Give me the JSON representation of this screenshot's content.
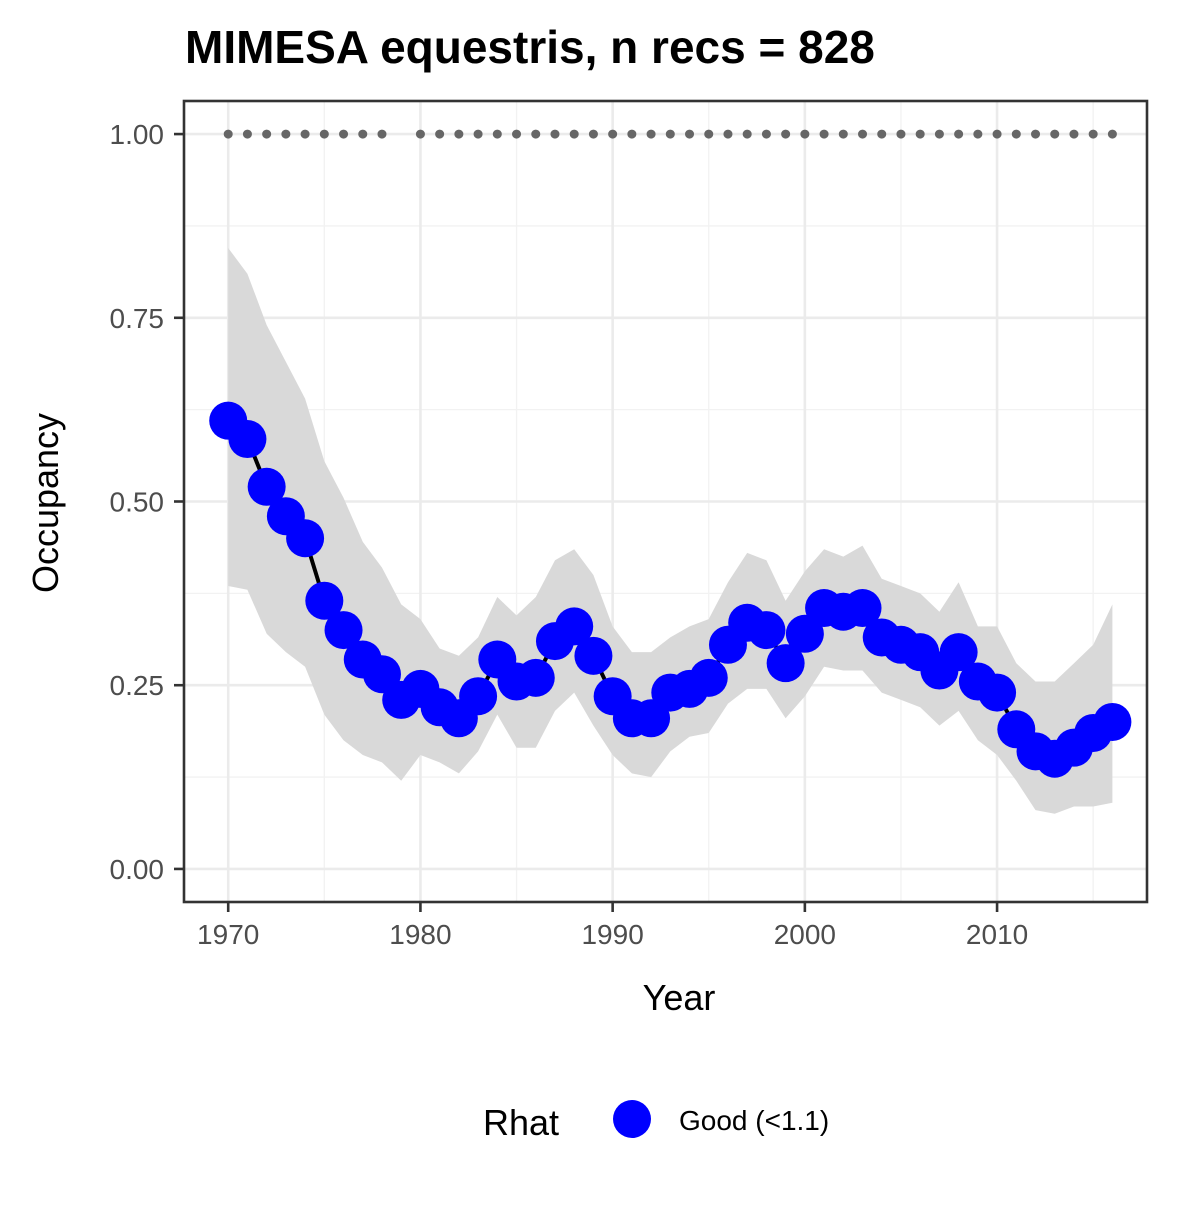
{
  "chart_data": {
    "type": "line",
    "title": "MIMESA equestris, n recs = 828",
    "xlabel": "Year",
    "ylabel": "Occupancy",
    "xlim": [
      1967.7,
      2017.8
    ],
    "ylim": [
      -0.045,
      1.045
    ],
    "x_ticks": [
      1970,
      1980,
      1990,
      2000,
      2010
    ],
    "x_tick_labels": [
      "1970",
      "1980",
      "1990",
      "2000",
      "2010"
    ],
    "y_ticks": [
      0,
      0.25,
      0.5,
      0.75,
      1.0
    ],
    "y_tick_labels": [
      "0.00",
      "0.25",
      "0.50",
      "0.75",
      "1.00"
    ],
    "grid": true,
    "legend": {
      "title": "Rhat",
      "position": "bottom",
      "entries": [
        {
          "label": "Good (<1.1)",
          "color": "#0000ff"
        }
      ]
    },
    "colors": {
      "points": "#0000ff",
      "line": "#000000",
      "ribbon": "#d9d9d9",
      "record_points": "#666666"
    },
    "series": [
      {
        "x": [
          1970,
          1971,
          1972,
          1973,
          1974,
          1975,
          1976,
          1977,
          1978,
          1979,
          1980,
          1981,
          1982,
          1983,
          1984,
          1985,
          1986,
          1987,
          1988,
          1989,
          1990,
          1991,
          1992,
          1993,
          1994,
          1995,
          1996,
          1997,
          1998,
          1999,
          2000,
          2001,
          2002,
          2003,
          2004,
          2005,
          2006,
          2007,
          2008,
          2009,
          2010,
          2011,
          2012,
          2013,
          2014,
          2015,
          2016
        ],
        "y": [
          0.61,
          0.585,
          0.52,
          0.48,
          0.45,
          0.365,
          0.325,
          0.285,
          0.265,
          0.23,
          0.245,
          0.22,
          0.205,
          0.235,
          0.285,
          0.255,
          0.26,
          0.31,
          0.33,
          0.29,
          0.235,
          0.205,
          0.205,
          0.24,
          0.245,
          0.26,
          0.305,
          0.335,
          0.325,
          0.28,
          0.32,
          0.355,
          0.35,
          0.355,
          0.315,
          0.305,
          0.295,
          0.27,
          0.295,
          0.255,
          0.24,
          0.19,
          0.16,
          0.15,
          0.165,
          0.185,
          0.2
        ],
        "lower": [
          0.385,
          0.38,
          0.32,
          0.295,
          0.275,
          0.21,
          0.175,
          0.155,
          0.145,
          0.12,
          0.155,
          0.145,
          0.13,
          0.16,
          0.21,
          0.165,
          0.165,
          0.215,
          0.24,
          0.195,
          0.155,
          0.13,
          0.125,
          0.16,
          0.18,
          0.185,
          0.225,
          0.245,
          0.245,
          0.205,
          0.235,
          0.275,
          0.27,
          0.27,
          0.24,
          0.23,
          0.22,
          0.195,
          0.215,
          0.175,
          0.155,
          0.12,
          0.08,
          0.075,
          0.085,
          0.085,
          0.09
        ],
        "upper": [
          0.845,
          0.81,
          0.74,
          0.69,
          0.64,
          0.555,
          0.505,
          0.445,
          0.41,
          0.36,
          0.34,
          0.3,
          0.29,
          0.315,
          0.37,
          0.345,
          0.37,
          0.42,
          0.435,
          0.4,
          0.33,
          0.295,
          0.295,
          0.315,
          0.33,
          0.34,
          0.39,
          0.43,
          0.42,
          0.365,
          0.405,
          0.435,
          0.425,
          0.44,
          0.395,
          0.385,
          0.375,
          0.35,
          0.39,
          0.33,
          0.33,
          0.28,
          0.255,
          0.255,
          0.28,
          0.305,
          0.36
        ]
      }
    ],
    "record_points": {
      "y": 1.0,
      "x": [
        1970,
        1971,
        1972,
        1973,
        1974,
        1975,
        1976,
        1977,
        1978,
        1980,
        1981,
        1982,
        1983,
        1984,
        1985,
        1986,
        1987,
        1988,
        1989,
        1990,
        1991,
        1992,
        1993,
        1994,
        1995,
        1996,
        1997,
        1998,
        1999,
        2000,
        2001,
        2002,
        2003,
        2004,
        2005,
        2006,
        2007,
        2008,
        2009,
        2010,
        2011,
        2012,
        2013,
        2014,
        2015,
        2016
      ]
    }
  }
}
